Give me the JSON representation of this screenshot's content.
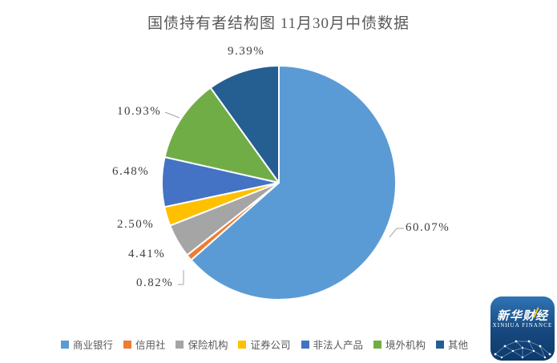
{
  "chart_data": {
    "type": "pie",
    "title": "国债持有者结构图 11月30月中债数据",
    "legend": [
      "商业银行",
      "信用社",
      "保险机构",
      "证券公司",
      "非法人产品",
      "境外机构",
      "其他"
    ],
    "values": [
      60.07,
      0.82,
      4.41,
      2.5,
      6.48,
      10.93,
      9.39
    ],
    "display_labels": [
      "60.07%",
      "0.82%",
      "4.41%",
      "2.50%",
      "6.48%",
      "10.93%",
      "9.39%"
    ],
    "colors": [
      "#5B9BD5",
      "#ED7D31",
      "#A5A5A5",
      "#FFC000",
      "#4472C4",
      "#70AD47",
      "#255E91"
    ],
    "unit": "%",
    "start_angle_deg": -90,
    "direction": "clockwise",
    "legend_position": "bottom",
    "slice_border_color": "#ffffff"
  },
  "logo": {
    "cn": "新华财经",
    "en": "XINHUA FINANCE"
  }
}
